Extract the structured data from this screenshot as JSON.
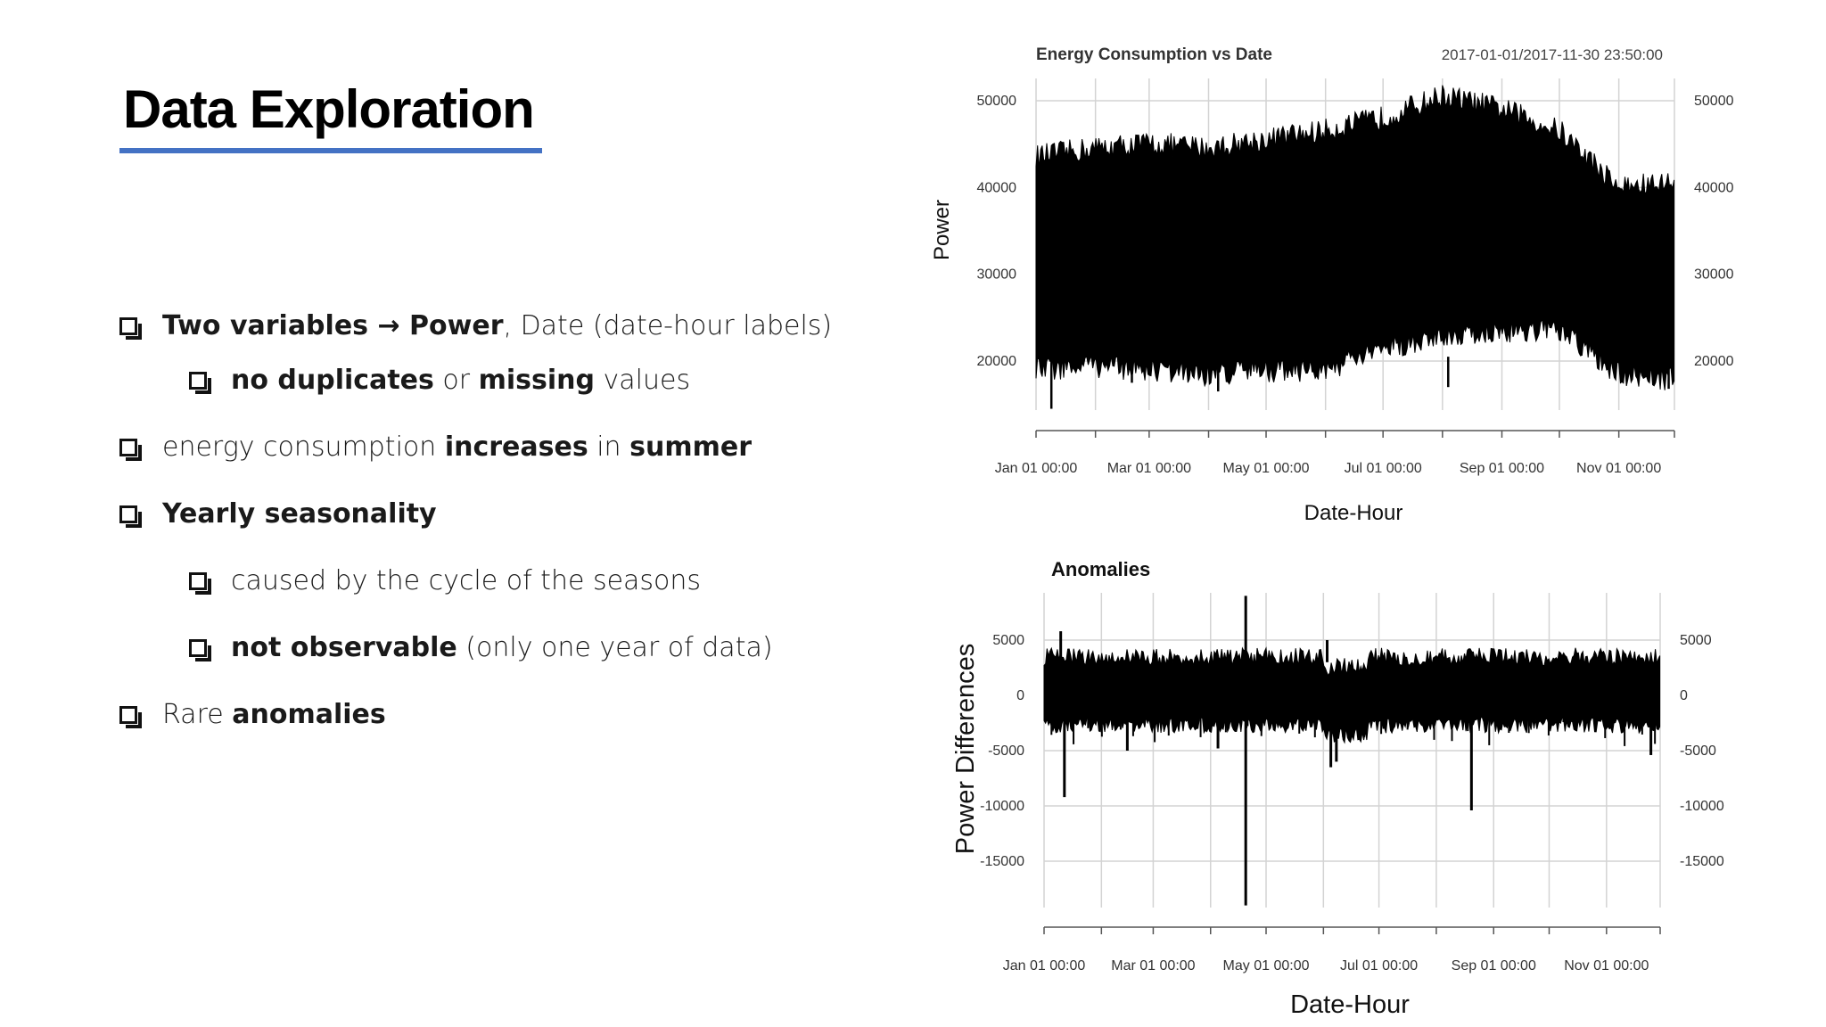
{
  "slide": {
    "title": "Data Exploration",
    "accent_color": "#4472c4",
    "bullets": [
      {
        "level": 1,
        "parts": [
          {
            "t": "Two variables → Power",
            "b": true
          },
          {
            "t": ", Date (date-hour labels)",
            "b": false
          }
        ]
      },
      {
        "level": 2,
        "parts": [
          {
            "t": "no duplicates",
            "b": true
          },
          {
            "t": " or ",
            "b": false
          },
          {
            "t": "missing",
            "b": true
          },
          {
            "t": " values",
            "b": false
          }
        ]
      },
      {
        "level": 1,
        "parts": [
          {
            "t": "energy consumption ",
            "b": false
          },
          {
            "t": "increases",
            "b": true
          },
          {
            "t": " in ",
            "b": false
          },
          {
            "t": "summer",
            "b": true
          }
        ]
      },
      {
        "level": 1,
        "parts": [
          {
            "t": "Yearly seasonality",
            "b": true
          }
        ]
      },
      {
        "level": 2,
        "parts": [
          {
            "t": "caused by the cycle of the seasons",
            "b": false
          }
        ]
      },
      {
        "level": 2,
        "parts": [
          {
            "t": "not observable",
            "b": true
          },
          {
            "t": " (only one year of data)",
            "b": false
          }
        ]
      },
      {
        "level": 1,
        "parts": [
          {
            "t": " Rare ",
            "b": false
          },
          {
            "t": "anomalies",
            "b": true
          }
        ]
      }
    ]
  },
  "chart_data": [
    {
      "type": "area",
      "title": "Energy Consumption vs Date",
      "subtitle": "2017-01-01/2017-11-30 23:50:00",
      "xlabel": "Date-Hour",
      "ylabel": "Power",
      "x_ticks": [
        "Jan 01 00:00",
        "Mar 01 00:00",
        "May 01 00:00",
        "Jul 01 00:00",
        "Sep 01 00:00",
        "Nov 01 00:00"
      ],
      "y_ticks": [
        20000,
        30000,
        40000,
        50000
      ],
      "ylim": [
        13000,
        52500
      ],
      "grid": true,
      "series": [
        {
          "color": "#000000",
          "x": [
            "Jan 01",
            "Feb 01",
            "Mar 01",
            "Apr 01",
            "May 01",
            "Jun 01",
            "Jul 01",
            "Aug 01",
            "Sep 01",
            "Oct 01",
            "Nov 01",
            "Nov 30"
          ],
          "upper": [
            43000,
            44000,
            44500,
            44000,
            45000,
            46000,
            47500,
            50000,
            48500,
            46000,
            39500,
            40000
          ],
          "lower": [
            19500,
            20000,
            19500,
            19000,
            19500,
            19500,
            22000,
            23500,
            24000,
            24000,
            19000,
            18500
          ]
        }
      ]
    },
    {
      "type": "line",
      "title": "Anomalies",
      "xlabel": "Date-Hour",
      "ylabel": "Power Differences",
      "x_ticks": [
        "Jan 01 00:00",
        "Mar 01 00:00",
        "May 01 00:00",
        "Jul 01 00:00",
        "Sep 01 00:00",
        "Nov 01 00:00"
      ],
      "y_ticks": [
        -15000,
        -10000,
        -5000,
        0,
        5000
      ],
      "ylim": [
        -19000,
        9500
      ],
      "grid": true,
      "series": [
        {
          "color": "#000000",
          "band_upper": 3500,
          "band_lower": -2000,
          "spikes": [
            {
              "x": "Jan 10",
              "y": 5800
            },
            {
              "x": "Jan 12",
              "y": -9200
            },
            {
              "x": "Feb 15",
              "y": -5000
            },
            {
              "x": "Apr 05",
              "y": -4800
            },
            {
              "x": "Apr 20",
              "y": 9000
            },
            {
              "x": "Apr 20",
              "y": -19000
            },
            {
              "x": "Jun 03",
              "y": 5000
            },
            {
              "x": "Jun 05",
              "y": -6500
            },
            {
              "x": "Jun 08",
              "y": -6000
            },
            {
              "x": "Aug 20",
              "y": -10400
            },
            {
              "x": "Nov 25",
              "y": -5400
            }
          ]
        }
      ]
    }
  ]
}
